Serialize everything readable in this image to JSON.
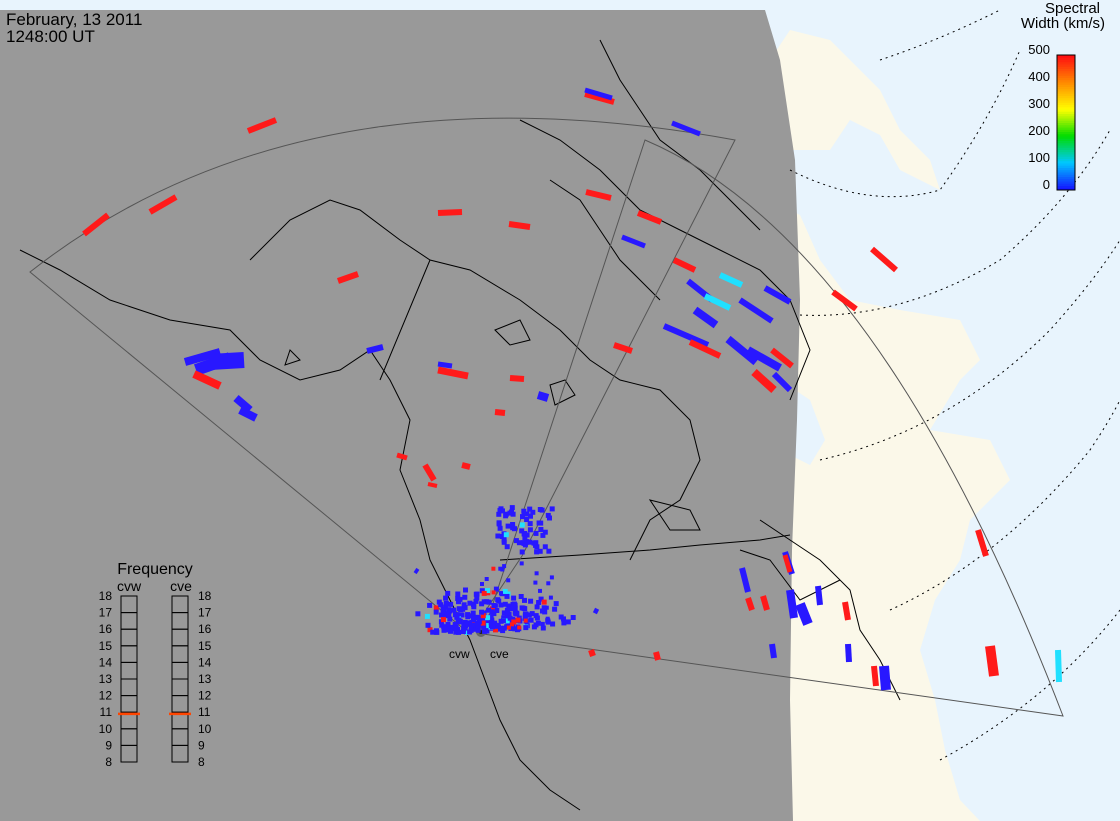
{
  "header": {
    "date": "February, 13 2011",
    "time": "1248:00 UT"
  },
  "colorbar": {
    "title_line1": "Spectral",
    "title_line2": "Width (km/s)",
    "ticks": [
      "500",
      "400",
      "300",
      "200",
      "100",
      "0"
    ],
    "colors": [
      "#1414ff",
      "#00c8ff",
      "#00dc00",
      "#ffff00",
      "#ff8c00",
      "#ff1010"
    ]
  },
  "radars": {
    "west_label": "cvw",
    "east_label": "cve"
  },
  "frequency_panel": {
    "title": "Frequency",
    "west_label": "cvw",
    "east_label": "cve",
    "ticks": [
      "18",
      "17",
      "16",
      "15",
      "14",
      "13",
      "12",
      "11",
      "10",
      "9",
      "8"
    ],
    "west_value_mhz": 10.9,
    "east_value_mhz": 10.9
  },
  "colors": {
    "night": "#999999",
    "land_day": "#fbf8e9",
    "ocean_day": "#e8f4fd",
    "red": "#ff1a1a",
    "blue": "#2818ff",
    "cyan": "#20e0ff",
    "frequency_marker": "#ff4500"
  }
}
